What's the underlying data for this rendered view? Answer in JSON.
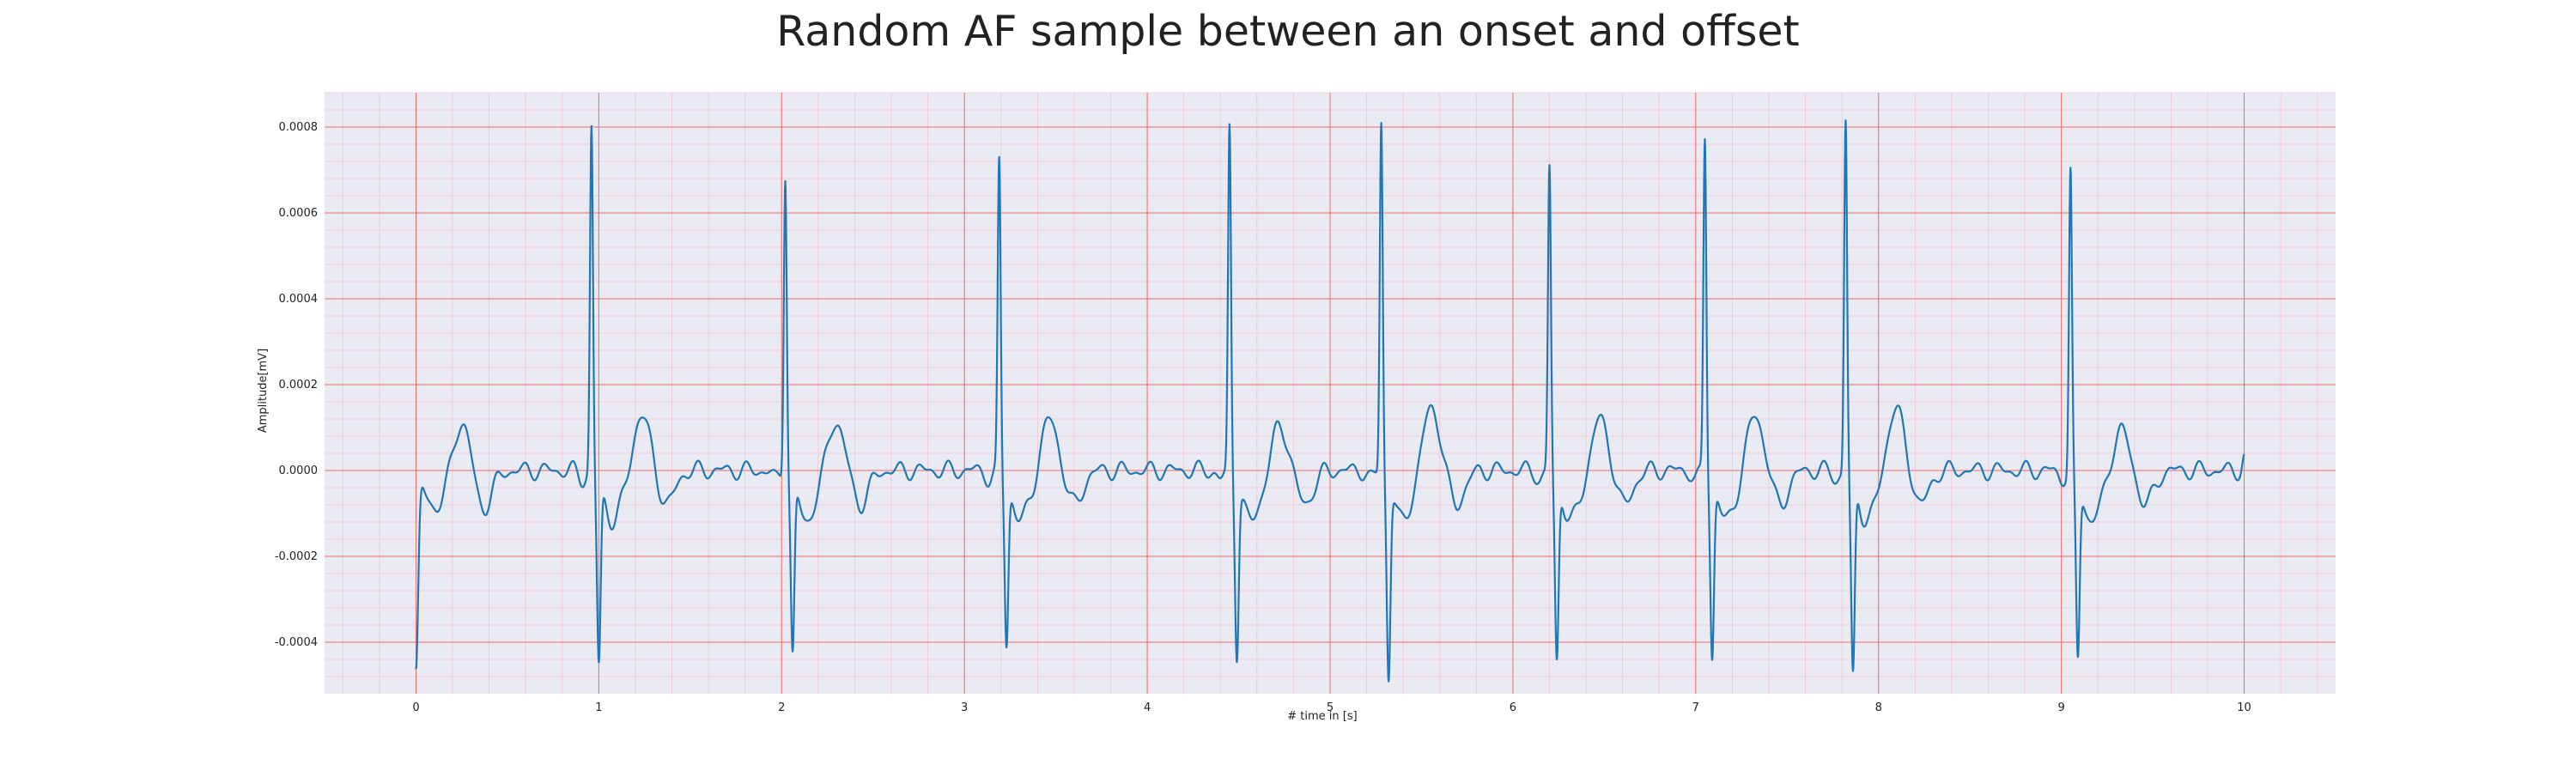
{
  "chart_data": {
    "type": "line",
    "title": "Random AF sample between an onset and offset",
    "xlabel": "# time in [s]",
    "ylabel": "Amplitude[mV]",
    "xlim": [
      -0.5,
      10.5
    ],
    "ylim": [
      -0.00052,
      0.00088
    ],
    "xticks": [
      0,
      1,
      2,
      3,
      4,
      5,
      6,
      7,
      8,
      9,
      10
    ],
    "xtick_labels": [
      "0",
      "1",
      "2",
      "3",
      "4",
      "5",
      "6",
      "7",
      "8",
      "9",
      "10"
    ],
    "yticks": [
      -0.0004,
      -0.0002,
      0.0,
      0.0002,
      0.0004,
      0.0006,
      0.0008
    ],
    "ytick_labels": [
      "-0.0004",
      "-0.0002",
      "0.0000",
      "0.0002",
      "0.0004",
      "0.0006",
      "0.0008"
    ],
    "grid": true,
    "minor_grid": true,
    "legend": false,
    "colors": {
      "background": "#eaeaf2",
      "major_grid": "#f06b6b",
      "minor_grid": "#f2c4d0",
      "line": "#1f77b4"
    },
    "series": [
      {
        "beats": [
          {
            "r_time": 0.96,
            "r_peak": 0.0008,
            "s_trough": -0.00043,
            "t_peak": 0.000135
          },
          {
            "r_time": 2.02,
            "r_peak": 0.0007,
            "s_trough": -0.00041,
            "t_peak": 0.00012
          },
          {
            "r_time": 3.19,
            "r_peak": 0.00072,
            "s_trough": -0.00038,
            "t_peak": 0.000125
          },
          {
            "r_time": 4.45,
            "r_peak": 0.0008,
            "s_trough": -0.0004,
            "t_peak": 0.00011
          },
          {
            "r_time": 5.28,
            "r_peak": 0.00082,
            "s_trough": -0.00046,
            "t_peak": 0.000155
          },
          {
            "r_time": 6.2,
            "r_peak": 0.00071,
            "s_trough": -0.00042,
            "t_peak": 0.000125
          },
          {
            "r_time": 7.05,
            "r_peak": 0.00078,
            "s_trough": -0.00041,
            "t_peak": 0.000135
          },
          {
            "r_time": 7.82,
            "r_peak": 0.00082,
            "s_trough": -0.00046,
            "t_peak": 0.00015
          },
          {
            "r_time": 9.05,
            "r_peak": 0.0007,
            "s_trough": -0.00042,
            "t_peak": 0.0001
          }
        ],
        "start": {
          "time": 0.0,
          "value": -0.00045
        },
        "first_t_peak": {
          "time": 0.25,
          "value": 0.000135
        },
        "end": {
          "time": 10.0,
          "value": 3e-05
        }
      }
    ]
  }
}
